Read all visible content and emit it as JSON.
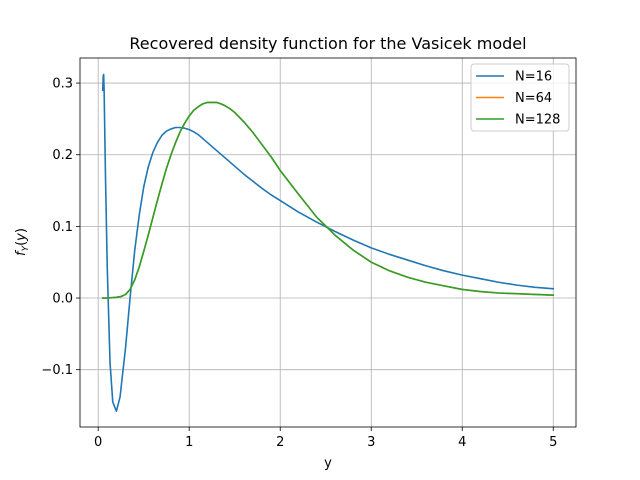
{
  "chart_data": {
    "type": "line",
    "title": "Recovered density function for the Vasicek model",
    "xlabel": "y",
    "ylabel": "f_Y(y)",
    "xlim": [
      -0.2,
      5.25
    ],
    "ylim": [
      -0.18,
      0.335
    ],
    "xticks": [
      0,
      1,
      2,
      3,
      4,
      5
    ],
    "xtick_labels": [
      "0",
      "1",
      "2",
      "3",
      "4",
      "5"
    ],
    "yticks": [
      -0.1,
      0.0,
      0.1,
      0.2,
      0.3
    ],
    "ytick_labels": [
      "−0.1",
      "0.0",
      "0.1",
      "0.2",
      "0.3"
    ],
    "grid": true,
    "legend_position": "top-right",
    "series": [
      {
        "name": "N=16",
        "color": "#1f77b4",
        "x": [
          0.05,
          0.055,
          0.06,
          0.065,
          0.07,
          0.08,
          0.1,
          0.13,
          0.16,
          0.2,
          0.24,
          0.3,
          0.35,
          0.4,
          0.45,
          0.5,
          0.55,
          0.6,
          0.65,
          0.7,
          0.75,
          0.8,
          0.85,
          0.9,
          0.95,
          1.0,
          1.05,
          1.1,
          1.2,
          1.3,
          1.4,
          1.5,
          1.6,
          1.7,
          1.8,
          1.9,
          2.0,
          2.2,
          2.4,
          2.6,
          2.8,
          3.0,
          3.2,
          3.4,
          3.6,
          3.8,
          4.0,
          4.2,
          4.4,
          4.6,
          4.8,
          5.0
        ],
        "y": [
          0.29,
          0.31,
          0.312,
          0.29,
          0.25,
          0.17,
          0.04,
          -0.09,
          -0.145,
          -0.158,
          -0.138,
          -0.07,
          0.0,
          0.065,
          0.115,
          0.155,
          0.183,
          0.203,
          0.217,
          0.227,
          0.233,
          0.236,
          0.238,
          0.238,
          0.237,
          0.235,
          0.232,
          0.228,
          0.217,
          0.206,
          0.195,
          0.184,
          0.173,
          0.163,
          0.153,
          0.144,
          0.136,
          0.12,
          0.106,
          0.093,
          0.081,
          0.07,
          0.061,
          0.053,
          0.045,
          0.038,
          0.032,
          0.027,
          0.022,
          0.018,
          0.015,
          0.013
        ]
      },
      {
        "name": "N=64",
        "color": "#ff7f0e",
        "x": [
          0.05,
          0.1,
          0.15,
          0.2,
          0.25,
          0.3,
          0.35,
          0.4,
          0.45,
          0.5,
          0.55,
          0.6,
          0.65,
          0.7,
          0.75,
          0.8,
          0.85,
          0.9,
          0.95,
          1.0,
          1.05,
          1.1,
          1.15,
          1.2,
          1.25,
          1.3,
          1.35,
          1.4,
          1.45,
          1.5,
          1.6,
          1.7,
          1.8,
          1.9,
          2.0,
          2.2,
          2.4,
          2.6,
          2.8,
          3.0,
          3.2,
          3.4,
          3.6,
          3.8,
          4.0,
          4.2,
          4.4,
          4.6,
          4.8,
          5.0
        ],
        "y": [
          0.0,
          0.0,
          0.0005,
          0.001,
          0.002,
          0.005,
          0.012,
          0.025,
          0.043,
          0.065,
          0.088,
          0.112,
          0.136,
          0.159,
          0.181,
          0.2,
          0.217,
          0.232,
          0.244,
          0.254,
          0.262,
          0.267,
          0.271,
          0.273,
          0.273,
          0.273,
          0.271,
          0.268,
          0.264,
          0.259,
          0.246,
          0.231,
          0.214,
          0.197,
          0.178,
          0.145,
          0.113,
          0.088,
          0.067,
          0.05,
          0.038,
          0.029,
          0.022,
          0.017,
          0.012,
          0.009,
          0.007,
          0.006,
          0.005,
          0.004
        ]
      },
      {
        "name": "N=128",
        "color": "#2ca02c",
        "x": [
          0.05,
          0.1,
          0.15,
          0.2,
          0.25,
          0.3,
          0.35,
          0.4,
          0.45,
          0.5,
          0.55,
          0.6,
          0.65,
          0.7,
          0.75,
          0.8,
          0.85,
          0.9,
          0.95,
          1.0,
          1.05,
          1.1,
          1.15,
          1.2,
          1.25,
          1.3,
          1.35,
          1.4,
          1.45,
          1.5,
          1.6,
          1.7,
          1.8,
          1.9,
          2.0,
          2.2,
          2.4,
          2.6,
          2.8,
          3.0,
          3.2,
          3.4,
          3.6,
          3.8,
          4.0,
          4.2,
          4.4,
          4.6,
          4.8,
          5.0
        ],
        "y": [
          0.0,
          0.0,
          0.0005,
          0.001,
          0.002,
          0.005,
          0.012,
          0.025,
          0.043,
          0.065,
          0.088,
          0.112,
          0.136,
          0.159,
          0.181,
          0.2,
          0.217,
          0.232,
          0.244,
          0.254,
          0.262,
          0.267,
          0.271,
          0.273,
          0.273,
          0.273,
          0.271,
          0.268,
          0.264,
          0.259,
          0.246,
          0.231,
          0.214,
          0.197,
          0.178,
          0.145,
          0.113,
          0.088,
          0.067,
          0.05,
          0.038,
          0.029,
          0.022,
          0.017,
          0.012,
          0.009,
          0.007,
          0.006,
          0.005,
          0.004
        ]
      }
    ]
  }
}
